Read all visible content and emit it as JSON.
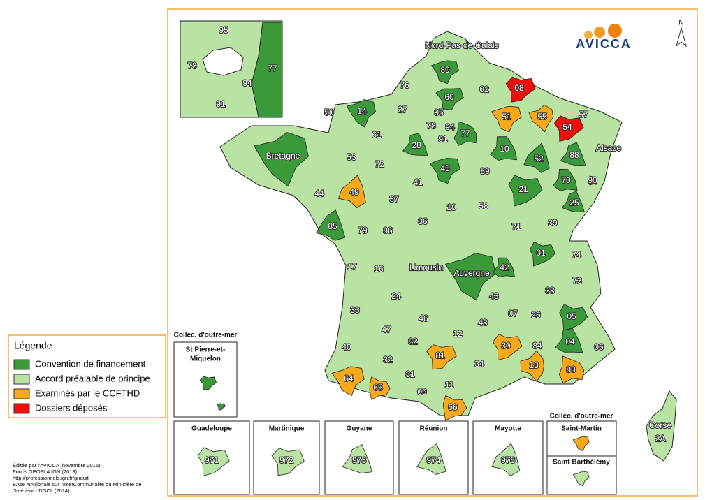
{
  "logo": "AVICCA",
  "north": "N",
  "legend": {
    "title": "Légende",
    "items": [
      {
        "label": "Convention de financement",
        "color": "#3a9a3a"
      },
      {
        "label": "Accord préalable de principe",
        "color": "#b9e3a2"
      },
      {
        "label": "Examinés par le CCFTHD",
        "color": "#f9a81a"
      },
      {
        "label": "Dossiers déposés",
        "color": "#f20d0d"
      }
    ]
  },
  "departments": [
    {
      "label": "Nord-Pas-de-Calais",
      "color": "#3a9a3a"
    },
    {
      "label": "80",
      "color": "#3a9a3a"
    },
    {
      "label": "60",
      "color": "#3a9a3a"
    },
    {
      "label": "02",
      "color": "#b9e3a2"
    },
    {
      "label": "08",
      "color": "#f20d0d"
    },
    {
      "label": "76",
      "color": "#b9e3a2"
    },
    {
      "label": "14",
      "color": "#3a9a3a"
    },
    {
      "label": "50",
      "color": "#b9e3a2"
    },
    {
      "label": "27",
      "color": "#b9e3a2"
    },
    {
      "label": "95",
      "color": "#b9e3a2"
    },
    {
      "label": "78",
      "color": "#b9e3a2"
    },
    {
      "label": "94",
      "color": "#b9e3a2"
    },
    {
      "label": "91",
      "color": "#b9e3a2"
    },
    {
      "label": "77",
      "color": "#3a9a3a"
    },
    {
      "label": "51",
      "color": "#f9a81a"
    },
    {
      "label": "55",
      "color": "#f9a81a"
    },
    {
      "label": "54",
      "color": "#f20d0d"
    },
    {
      "label": "57",
      "color": "#b9e3a2"
    },
    {
      "label": "61",
      "color": "#b9e3a2"
    },
    {
      "label": "53",
      "color": "#b9e3a2"
    },
    {
      "label": "72",
      "color": "#b9e3a2"
    },
    {
      "label": "28",
      "color": "#3a9a3a"
    },
    {
      "label": "45",
      "color": "#3a9a3a"
    },
    {
      "label": "10",
      "color": "#3a9a3a"
    },
    {
      "label": "52",
      "color": "#3a9a3a"
    },
    {
      "label": "88",
      "color": "#3a9a3a"
    },
    {
      "label": "Alsace",
      "color": "#b9e3a2"
    },
    {
      "label": "Bretagne",
      "color": "#3a9a3a"
    },
    {
      "label": "89",
      "color": "#b9e3a2"
    },
    {
      "label": "41",
      "color": "#b9e3a2"
    },
    {
      "label": "21",
      "color": "#3a9a3a"
    },
    {
      "label": "70",
      "color": "#3a9a3a"
    },
    {
      "label": "90",
      "color": "#f20d0d"
    },
    {
      "label": "44",
      "color": "#b9e3a2"
    },
    {
      "label": "49",
      "color": "#f9a81a"
    },
    {
      "label": "37",
      "color": "#b9e3a2"
    },
    {
      "label": "18",
      "color": "#b9e3a2"
    },
    {
      "label": "58",
      "color": "#b9e3a2"
    },
    {
      "label": "25",
      "color": "#3a9a3a"
    },
    {
      "label": "85",
      "color": "#3a9a3a"
    },
    {
      "label": "79",
      "color": "#b9e3a2"
    },
    {
      "label": "86",
      "color": "#b9e3a2"
    },
    {
      "label": "36",
      "color": "#b9e3a2"
    },
    {
      "label": "71",
      "color": "#b9e3a2"
    },
    {
      "label": "39",
      "color": "#b9e3a2"
    },
    {
      "label": "01",
      "color": "#3a9a3a"
    },
    {
      "label": "74",
      "color": "#b9e3a2"
    },
    {
      "label": "17",
      "color": "#b9e3a2"
    },
    {
      "label": "16",
      "color": "#b9e3a2"
    },
    {
      "label": "Limousin",
      "color": "#b9e3a2"
    },
    {
      "label": "Auvergne",
      "color": "#3a9a3a"
    },
    {
      "label": "42",
      "color": "#3a9a3a"
    },
    {
      "label": "73",
      "color": "#b9e3a2"
    },
    {
      "label": "38",
      "color": "#b9e3a2"
    },
    {
      "label": "24",
      "color": "#b9e3a2"
    },
    {
      "label": "43",
      "color": "#b9e3a2"
    },
    {
      "label": "07",
      "color": "#b9e3a2"
    },
    {
      "label": "26",
      "color": "#b9e3a2"
    },
    {
      "label": "05",
      "color": "#3a9a3a"
    },
    {
      "label": "33",
      "color": "#b9e3a2"
    },
    {
      "label": "46",
      "color": "#b9e3a2"
    },
    {
      "label": "48",
      "color": "#b9e3a2"
    },
    {
      "label": "04",
      "color": "#3a9a3a"
    },
    {
      "label": "06",
      "color": "#b9e3a2"
    },
    {
      "label": "47",
      "color": "#b9e3a2"
    },
    {
      "label": "12",
      "color": "#b9e3a2"
    },
    {
      "label": "30",
      "color": "#f9a81a"
    },
    {
      "label": "84",
      "color": "#b9e3a2"
    },
    {
      "label": "40",
      "color": "#b9e3a2"
    },
    {
      "label": "82",
      "color": "#b9e3a2"
    },
    {
      "label": "81",
      "color": "#f9a81a"
    },
    {
      "label": "13",
      "color": "#f9a81a"
    },
    {
      "label": "83",
      "color": "#f9a81a"
    },
    {
      "label": "32",
      "color": "#b9e3a2"
    },
    {
      "label": "34",
      "color": "#b9e3a2"
    },
    {
      "label": "31",
      "color": "#b9e3a2"
    },
    {
      "label": "64",
      "color": "#f9a81a"
    },
    {
      "label": "65",
      "color": "#f9a81a"
    },
    {
      "label": "11",
      "color": "#b9e3a2"
    },
    {
      "label": "09",
      "color": "#b9e3a2"
    },
    {
      "label": "66",
      "color": "#f9a81a"
    }
  ],
  "corse": {
    "lines": [
      "Corse",
      "2A"
    ],
    "color": "#b9e3a2"
  },
  "paris_inset": [
    {
      "label": "95",
      "color": "#b9e3a2"
    },
    {
      "label": "78",
      "color": "#b9e3a2"
    },
    {
      "label": "77",
      "color": "#3a9a3a"
    },
    {
      "label": "94",
      "color": "#b9e3a2"
    },
    {
      "label": "91",
      "color": "#b9e3a2"
    }
  ],
  "outre_mer_heading": "Collec. d'outre-mer",
  "st_pierre": {
    "lines": [
      "St Pierre-et-",
      "Miquelon"
    ],
    "color": "#3a9a3a"
  },
  "overseas": [
    {
      "label": "Guadeloupe",
      "code": "971",
      "color": "#b9e3a2"
    },
    {
      "label": "Martinique",
      "code": "972",
      "color": "#b9e3a2"
    },
    {
      "label": "Guyane",
      "code": "973",
      "color": "#b9e3a2"
    },
    {
      "label": "Réunion",
      "code": "974",
      "color": "#b9e3a2"
    },
    {
      "label": "Mayotte",
      "code": "976",
      "color": "#b9e3a2"
    }
  ],
  "saint_martin": {
    "heading": "Collec. d'outre-mer",
    "label": "Saint-Martin",
    "color": "#f9a81a"
  },
  "saint_barthelemy": {
    "label": "Saint Barthélémy",
    "color": "#b9e3a2"
  },
  "credits": [
    "Éditée par l'AVICCA (novembre 2016)",
    "Fonds GEOFLA IGN (2013) :",
    "http://professionnels.ign.fr/gratuit",
    "BAse NATionale sur l'InterCommunalité du Ministère de",
    "l'Intérieur - DGCL (2014)"
  ]
}
